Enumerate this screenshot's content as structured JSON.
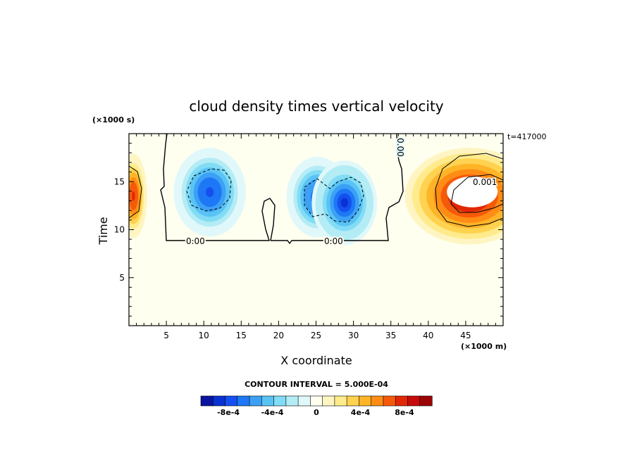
{
  "chart_data": {
    "type": "heatmap",
    "title": "cloud density times vertical velocity",
    "xlabel": "X coordinate",
    "ylabel": "Time",
    "x_multiplier": "(×1000 m)",
    "y_multiplier": "(×1000 s)",
    "time_label": "t=417000",
    "xlim": [
      0,
      50
    ],
    "ylim": [
      0,
      20
    ],
    "x_ticks": [
      5,
      10,
      15,
      20,
      25,
      30,
      35,
      40,
      45
    ],
    "y_ticks": [
      5,
      10,
      15
    ],
    "contour_interval_text": "CONTOUR INTERVAL = 5.000E-04",
    "contour_labels": [
      "0.00",
      "0.00",
      "0.00",
      "0.001"
    ],
    "colorbar": {
      "tick_labels": [
        "-8e-4",
        "-4e-4",
        "0",
        "4e-4",
        "8e-4"
      ],
      "tick_values": [
        -0.0008,
        -0.0004,
        0,
        0.0004,
        0.0008
      ],
      "vmin": -0.00105,
      "vmax": 0.00105,
      "colors": [
        "#0a14a0",
        "#0a32d2",
        "#1450f0",
        "#1e78f5",
        "#3ca0f5",
        "#5ac3f5",
        "#82dcf5",
        "#b4ecf5",
        "#e1f8fa",
        "#fffff0",
        "#fff5c3",
        "#ffeb8c",
        "#ffd250",
        "#ffb428",
        "#ff8c14",
        "#f55a0a",
        "#e12805",
        "#c80a0a",
        "#9b0505"
      ]
    },
    "features": [
      {
        "kind": "negative",
        "x": 10.8,
        "y": 13.9,
        "peak": -0.0009
      },
      {
        "kind": "negative",
        "x": 25.2,
        "y": 13.4,
        "peak": -0.00085
      },
      {
        "kind": "negative",
        "x": 28.8,
        "y": 12.8,
        "peak": -0.00095
      },
      {
        "kind": "positive",
        "x": 45.5,
        "y": 13.5,
        "peak": 0.0011
      },
      {
        "kind": "positive",
        "x": 0.6,
        "y": 13.5,
        "peak": 0.0009
      }
    ]
  }
}
